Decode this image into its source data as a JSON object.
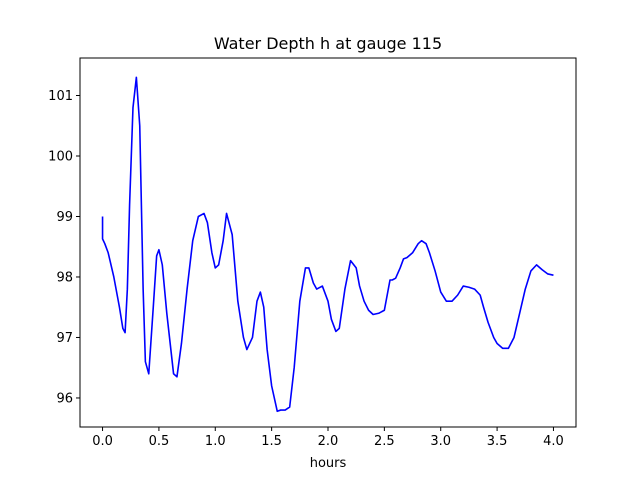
{
  "chart_data": {
    "type": "line",
    "title": "Water Depth h at gauge 115",
    "xlabel": "hours",
    "ylabel": "",
    "xlim": [
      -0.2,
      4.2
    ],
    "ylim": [
      95.52,
      101.62
    ],
    "xticks": [
      0.0,
      0.5,
      1.0,
      1.5,
      2.0,
      2.5,
      3.0,
      3.5,
      4.0
    ],
    "xtick_labels": [
      "0.0",
      "0.5",
      "1.0",
      "1.5",
      "2.0",
      "2.5",
      "3.0",
      "3.5",
      "4.0"
    ],
    "yticks": [
      96,
      97,
      98,
      99,
      100,
      101
    ],
    "ytick_labels": [
      "96",
      "97",
      "98",
      "99",
      "100",
      "101"
    ],
    "grid": false,
    "legend": false,
    "series": [
      {
        "color": "#0000ff",
        "x": [
          0.0,
          0.0,
          0.02,
          0.05,
          0.1,
          0.15,
          0.18,
          0.2,
          0.22,
          0.24,
          0.27,
          0.3,
          0.33,
          0.36,
          0.38,
          0.41,
          0.45,
          0.48,
          0.5,
          0.53,
          0.57,
          0.6,
          0.63,
          0.66,
          0.7,
          0.75,
          0.8,
          0.85,
          0.9,
          0.93,
          0.97,
          1.0,
          1.03,
          1.07,
          1.1,
          1.15,
          1.2,
          1.25,
          1.28,
          1.33,
          1.37,
          1.4,
          1.43,
          1.46,
          1.5,
          1.55,
          1.58,
          1.62,
          1.66,
          1.7,
          1.75,
          1.8,
          1.83,
          1.87,
          1.9,
          1.95,
          2.0,
          2.03,
          2.07,
          2.1,
          2.15,
          2.2,
          2.25,
          2.28,
          2.32,
          2.36,
          2.4,
          2.45,
          2.5,
          2.55,
          2.57,
          2.6,
          2.64,
          2.67,
          2.7,
          2.75,
          2.8,
          2.83,
          2.87,
          2.9,
          2.95,
          3.0,
          3.05,
          3.1,
          3.15,
          3.2,
          3.25,
          3.3,
          3.35,
          3.38,
          3.42,
          3.47,
          3.5,
          3.55,
          3.6,
          3.65,
          3.7,
          3.75,
          3.8,
          3.85,
          3.9,
          3.95,
          4.0
        ],
        "y": [
          99.0,
          98.63,
          98.55,
          98.4,
          98.0,
          97.5,
          97.15,
          97.08,
          97.8,
          99.2,
          100.8,
          101.3,
          100.5,
          97.8,
          96.6,
          96.4,
          97.5,
          98.35,
          98.45,
          98.2,
          97.4,
          96.9,
          96.4,
          96.35,
          96.9,
          97.8,
          98.6,
          99.0,
          99.05,
          98.9,
          98.4,
          98.15,
          98.2,
          98.6,
          99.05,
          98.7,
          97.6,
          97.0,
          96.8,
          97.0,
          97.6,
          97.75,
          97.5,
          96.8,
          96.2,
          95.78,
          95.8,
          95.8,
          95.85,
          96.5,
          97.6,
          98.15,
          98.15,
          97.9,
          97.8,
          97.85,
          97.6,
          97.3,
          97.1,
          97.15,
          97.8,
          98.27,
          98.15,
          97.85,
          97.6,
          97.45,
          97.38,
          97.4,
          97.45,
          97.95,
          97.95,
          97.98,
          98.15,
          98.3,
          98.32,
          98.4,
          98.55,
          98.6,
          98.55,
          98.4,
          98.1,
          97.75,
          97.6,
          97.6,
          97.7,
          97.85,
          97.83,
          97.8,
          97.7,
          97.5,
          97.25,
          97.0,
          96.9,
          96.82,
          96.82,
          97.0,
          97.4,
          97.8,
          98.1,
          98.2,
          98.12,
          98.05,
          98.03
        ]
      }
    ]
  }
}
